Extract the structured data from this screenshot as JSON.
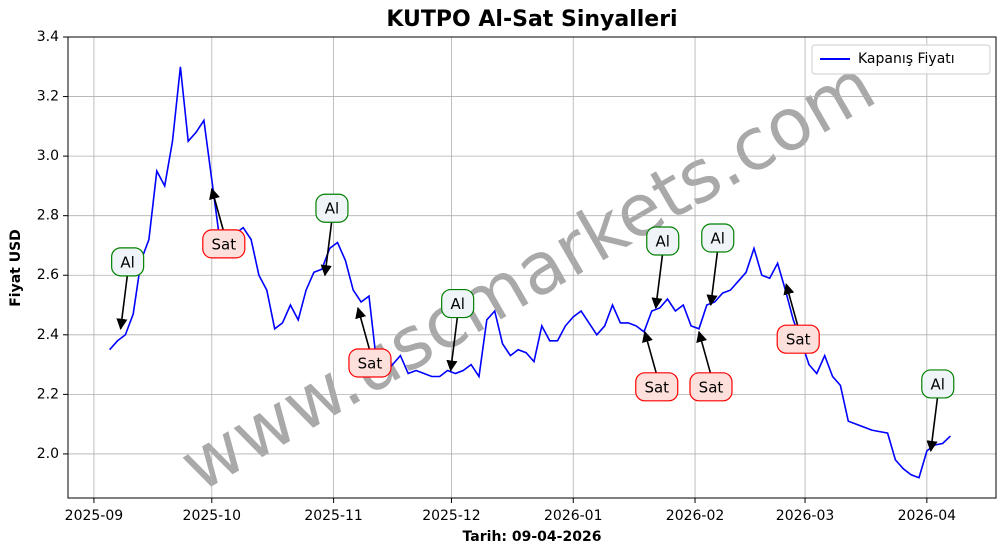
{
  "chart_data": {
    "type": "line",
    "title": "KUTPO Al-Sat Sinyalleri",
    "xlabel": "Tarih: 09-04-2026",
    "ylabel": "Fiyat USD",
    "watermark": "www.uscmarkets.com",
    "legend": "upper right",
    "grid": true,
    "xlim": [
      -5.3,
      112.8
    ],
    "ylim": [
      1.852,
      3.4
    ],
    "xticks": [
      {
        "value": -2,
        "label": "2025-09"
      },
      {
        "value": 13,
        "label": "2025-10"
      },
      {
        "value": 28.5,
        "label": "2025-11"
      },
      {
        "value": 43.5,
        "label": "2025-12"
      },
      {
        "value": 59,
        "label": "2026-01"
      },
      {
        "value": 74.5,
        "label": "2026-02"
      },
      {
        "value": 88.5,
        "label": "2026-03"
      },
      {
        "value": 104,
        "label": "2026-04"
      }
    ],
    "yticks": [
      {
        "value": 2,
        "label": "2.0"
      },
      2.2,
      2.4,
      2.6,
      2.8,
      {
        "value": 3,
        "label": "3.0"
      },
      3.2,
      3.4
    ],
    "series": [
      {
        "name": "Kapanış Fiyatı",
        "color": "#0000ff",
        "values": [
          2.35,
          2.38,
          2.4,
          2.47,
          2.65,
          2.72,
          2.95,
          2.9,
          3.05,
          3.3,
          3.05,
          3.08,
          3.12,
          2.92,
          2.72,
          2.73,
          2.74,
          2.76,
          2.72,
          2.6,
          2.55,
          2.42,
          2.44,
          2.5,
          2.45,
          2.55,
          2.61,
          2.62,
          2.69,
          2.71,
          2.65,
          2.55,
          2.51,
          2.53,
          2.3,
          2.27,
          2.3,
          2.33,
          2.27,
          2.28,
          2.27,
          2.26,
          2.26,
          2.28,
          2.27,
          2.28,
          2.3,
          2.26,
          2.45,
          2.48,
          2.37,
          2.33,
          2.35,
          2.34,
          2.31,
          2.43,
          2.38,
          2.38,
          2.43,
          2.46,
          2.48,
          2.44,
          2.4,
          2.43,
          2.5,
          2.44,
          2.44,
          2.43,
          2.41,
          2.48,
          2.49,
          2.52,
          2.48,
          2.5,
          2.43,
          2.42,
          2.5,
          2.51,
          2.54,
          2.55,
          2.58,
          2.61,
          2.69,
          2.6,
          2.59,
          2.64,
          2.55,
          2.45,
          2.38,
          2.3,
          2.27,
          2.33,
          2.26,
          2.23,
          2.11,
          2.1,
          2.09,
          2.08,
          2.075,
          2.07,
          1.98,
          1.95,
          1.93,
          1.92,
          2.01,
          2.03,
          2.035,
          2.06
        ]
      }
    ],
    "annotations": [
      {
        "text": "Al",
        "x": 1.4,
        "value": 2.42
      },
      {
        "text": "Sat",
        "x": 13.0,
        "value": 2.89
      },
      {
        "text": "Al",
        "x": 27.4,
        "value": 2.6
      },
      {
        "text": "Sat",
        "x": 31.6,
        "value": 2.49
      },
      {
        "text": "Al",
        "x": 43.4,
        "value": 2.28
      },
      {
        "text": "Sat",
        "x": 68.1,
        "value": 2.41
      },
      {
        "text": "Al",
        "x": 69.5,
        "value": 2.49
      },
      {
        "text": "Sat",
        "x": 75.0,
        "value": 2.41
      },
      {
        "text": "Al",
        "x": 76.5,
        "value": 2.5
      },
      {
        "text": "Sat",
        "x": 86.1,
        "value": 2.57
      },
      {
        "text": "Al",
        "x": 104.5,
        "value": 2.01
      }
    ]
  }
}
